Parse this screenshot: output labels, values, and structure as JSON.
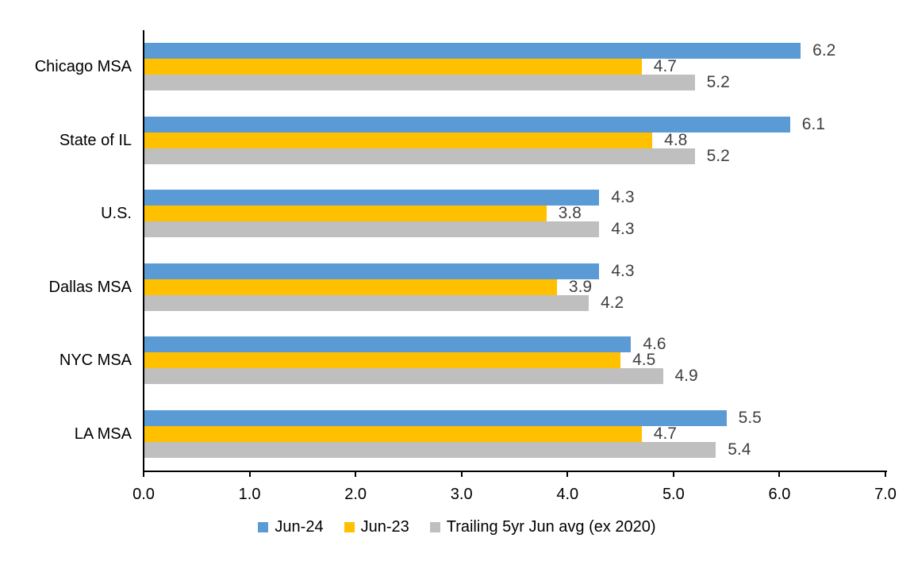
{
  "chart_data": {
    "type": "bar",
    "orientation": "horizontal",
    "categories": [
      "Chicago MSA",
      "State of IL",
      "U.S.",
      "Dallas MSA",
      "NYC MSA",
      "LA MSA"
    ],
    "series": [
      {
        "name": "Jun-24",
        "color": "#5B9BD5",
        "values": [
          6.2,
          6.1,
          4.3,
          4.3,
          4.6,
          5.5
        ]
      },
      {
        "name": "Jun-23",
        "color": "#FFC000",
        "values": [
          4.7,
          4.8,
          3.8,
          3.9,
          4.5,
          4.7
        ]
      },
      {
        "name": "Trailing 5yr Jun avg (ex 2020)",
        "color": "#BFBFBF",
        "values": [
          5.2,
          5.2,
          4.3,
          4.2,
          4.9,
          5.4
        ]
      }
    ],
    "value_labels": [
      [
        "6.2",
        "6.1",
        "4.3",
        "4.3",
        "4.6",
        "5.5"
      ],
      [
        "4.7",
        "4.8",
        "3.8",
        "3.9",
        "4.5",
        "4.7"
      ],
      [
        "5.2",
        "5.2",
        "4.3",
        "4.2",
        "4.9",
        "5.4"
      ]
    ],
    "xlim": [
      0,
      7
    ],
    "xtick_labels": [
      "0.0",
      "1.0",
      "2.0",
      "3.0",
      "4.0",
      "5.0",
      "6.0",
      "7.0"
    ],
    "data_labels_shown": true,
    "grid": false,
    "legend_position": "bottom",
    "axis_color": "#000000",
    "data_label_color": "#404040"
  }
}
